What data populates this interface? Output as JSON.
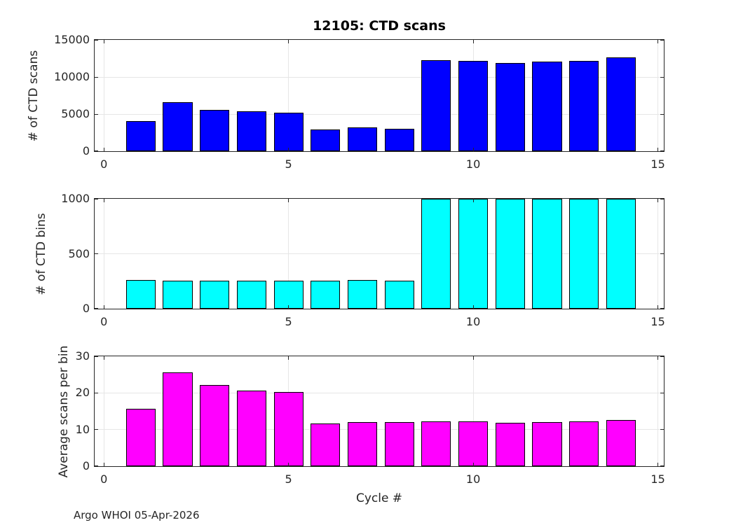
{
  "figure_title": "12105: CTD scans",
  "footer": "Argo WHOI 05-Apr-2026",
  "chart_data": [
    {
      "type": "bar",
      "title": "12105: CTD scans",
      "ylabel": "# of CTD scans",
      "xlabel": "",
      "categories": [
        1,
        2,
        3,
        4,
        5,
        6,
        7,
        8,
        9,
        10,
        11,
        12,
        13,
        14
      ],
      "values": [
        4100,
        6650,
        5600,
        5400,
        5200,
        2950,
        3250,
        3050,
        12300,
        12200,
        11850,
        12050,
        12200,
        12600
      ],
      "bar_color": "#0000ff",
      "bar_edge_color": "#000000",
      "ylim": [
        0,
        15000
      ],
      "yticks": [
        0,
        5000,
        10000,
        15000
      ],
      "xlim": [
        -0.25,
        15.16
      ],
      "xticks": [
        0,
        5,
        10,
        15
      ],
      "grid": true,
      "legend": "none"
    },
    {
      "type": "bar",
      "title": "",
      "ylabel": "# of CTD bins",
      "xlabel": "",
      "categories": [
        1,
        2,
        3,
        4,
        5,
        6,
        7,
        8,
        9,
        10,
        11,
        12,
        13,
        14
      ],
      "values": [
        263,
        256,
        256,
        257,
        256,
        257,
        260,
        256,
        1000,
        1000,
        1000,
        1000,
        1000,
        1000
      ],
      "values_note": "bars for cycles 9-14 are clipped at the axis maximum of 1000",
      "bar_color": "#00ffff",
      "bar_edge_color": "#000000",
      "ylim": [
        0,
        1000
      ],
      "yticks": [
        0,
        500,
        1000
      ],
      "xlim": [
        -0.25,
        15.16
      ],
      "xticks": [
        0,
        5,
        10,
        15
      ],
      "grid": true,
      "legend": "none"
    },
    {
      "type": "bar",
      "title": "",
      "ylabel": "Average scans per bin",
      "xlabel": "Cycle #",
      "categories": [
        1,
        2,
        3,
        4,
        5,
        6,
        7,
        8,
        9,
        10,
        11,
        12,
        13,
        14
      ],
      "values": [
        15.7,
        25.6,
        22.1,
        20.7,
        20.3,
        11.6,
        12.0,
        12.0,
        12.3,
        12.2,
        11.8,
        12.0,
        12.2,
        12.6
      ],
      "bar_color": "#ff00ff",
      "bar_edge_color": "#000000",
      "ylim": [
        0,
        30
      ],
      "yticks": [
        0,
        10,
        20,
        30
      ],
      "xlim": [
        -0.25,
        15.16
      ],
      "xticks": [
        0,
        5,
        10,
        15
      ],
      "grid": true,
      "legend": "none"
    }
  ]
}
